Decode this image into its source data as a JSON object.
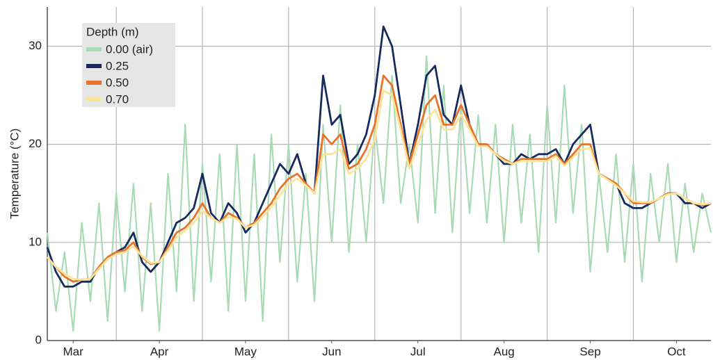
{
  "chart_data": {
    "type": "line",
    "y_label": "Temperature (°C)",
    "legend_title": "Depth (m)",
    "legend_position": "upper left",
    "grid": true,
    "ylim": [
      0,
      34
    ],
    "yticks": [
      0,
      10,
      20,
      30
    ],
    "categories": [
      null,
      null,
      null,
      "Mar",
      null,
      null,
      null,
      null,
      null,
      null,
      null,
      null,
      null,
      "Apr",
      null,
      null,
      null,
      null,
      null,
      null,
      null,
      null,
      null,
      "May",
      null,
      null,
      null,
      null,
      null,
      null,
      null,
      null,
      null,
      "Jun",
      null,
      null,
      null,
      null,
      null,
      null,
      null,
      null,
      null,
      "Jul",
      null,
      null,
      null,
      null,
      null,
      null,
      null,
      null,
      null,
      "Aug",
      null,
      null,
      null,
      null,
      null,
      null,
      null,
      null,
      null,
      "Sep",
      null,
      null,
      null,
      null,
      null,
      null,
      null,
      null,
      null,
      "Oct",
      null,
      null,
      null,
      null
    ],
    "series": [
      {
        "name": "0.00 (air)",
        "color": "#a8dbb5",
        "values": [
          11,
          3,
          9,
          1,
          12,
          4,
          14,
          2,
          15,
          5,
          16,
          3,
          14,
          1,
          17,
          5,
          22,
          4,
          18,
          6,
          19,
          3,
          20,
          4,
          19,
          2,
          21,
          8,
          20,
          6,
          17,
          4,
          22,
          10,
          24,
          9,
          20,
          10,
          22,
          14,
          27,
          14,
          20,
          12,
          29,
          13,
          26,
          11,
          24,
          13,
          23,
          12,
          22,
          10,
          22,
          12,
          21,
          9,
          24,
          12,
          26,
          13,
          22,
          7,
          17,
          9,
          19,
          8,
          18,
          6,
          17,
          10,
          18,
          8,
          16,
          9,
          15,
          11
        ]
      },
      {
        "name": "0.25",
        "color": "#172a5e",
        "values": [
          9.5,
          7,
          5.5,
          5.5,
          6,
          6,
          7.5,
          8.5,
          9,
          9.5,
          11,
          8,
          7,
          8,
          10,
          12,
          12.5,
          13.5,
          17,
          13,
          12,
          14,
          13,
          11,
          12,
          14,
          16,
          18,
          17,
          19,
          16,
          15,
          27,
          22,
          23,
          18,
          19,
          21,
          25,
          32,
          30,
          24,
          18,
          22,
          27,
          28,
          23,
          22,
          26,
          22,
          20,
          20,
          19,
          18,
          18,
          19,
          18.5,
          19,
          19,
          19.5,
          18,
          20,
          21,
          22,
          17,
          16.5,
          16,
          14,
          13.5,
          13.5,
          14,
          14.5,
          15,
          15,
          14,
          14,
          13.5,
          14
        ]
      },
      {
        "name": "0.50",
        "color": "#e8742a",
        "values": [
          8.5,
          7.5,
          6.5,
          6,
          6.2,
          6.3,
          7.5,
          8.5,
          9,
          9.2,
          10,
          8.5,
          7.8,
          8,
          9.5,
          11,
          11.5,
          12.5,
          14,
          12.5,
          12,
          13,
          12.5,
          11.5,
          12,
          13,
          14,
          15.5,
          16.5,
          17,
          16,
          15,
          21,
          20,
          21,
          17.5,
          18,
          19.5,
          22,
          27,
          26,
          22,
          18,
          21,
          24,
          25,
          22,
          22,
          24,
          22,
          20,
          20,
          19,
          18.5,
          18,
          18.5,
          18.5,
          18.5,
          18.5,
          19,
          18,
          19,
          20,
          20,
          17,
          16.5,
          16,
          15,
          14,
          14,
          14,
          14.5,
          15,
          15,
          14.5,
          14,
          13.8,
          14
        ]
      },
      {
        "name": "0.70",
        "color": "#fce49b",
        "values": [
          8.5,
          7.5,
          6.8,
          6.3,
          6.2,
          6.3,
          7.3,
          8.3,
          8.8,
          9,
          9.6,
          8.6,
          7.9,
          8,
          9.2,
          10.5,
          11.2,
          12,
          13.2,
          12.5,
          12,
          12.6,
          12.4,
          11.5,
          11.8,
          12.6,
          13.6,
          14.8,
          16,
          16.5,
          15.8,
          15,
          19,
          19,
          19.5,
          17,
          17.5,
          18.5,
          20.5,
          25.5,
          25,
          21.5,
          17.5,
          20,
          22.5,
          23.5,
          21.5,
          21.5,
          23,
          21.5,
          19.8,
          19.8,
          19,
          18.3,
          18,
          18.3,
          18.3,
          18.3,
          18.3,
          18.8,
          17.8,
          18.7,
          19.5,
          19.6,
          17,
          16.4,
          15.8,
          15,
          14.2,
          14.1,
          14.1,
          14.5,
          14.9,
          15,
          14.5,
          14,
          13.9,
          14
        ]
      }
    ]
  }
}
